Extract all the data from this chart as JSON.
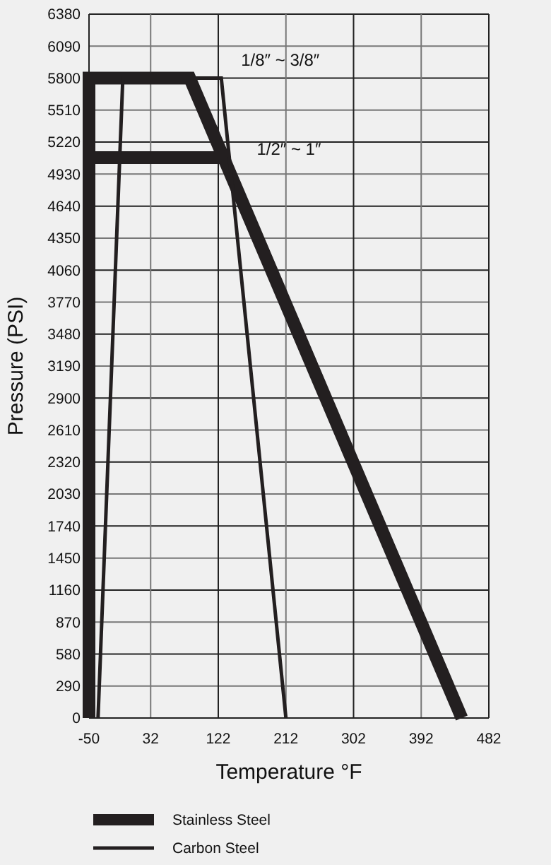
{
  "chart_data": {
    "type": "line",
    "xlabel": "Temperature °F",
    "ylabel": "Pressure (PSI)",
    "xlim": [
      -50,
      482
    ],
    "xticks": [
      -50,
      32,
      122,
      212,
      302,
      392,
      482
    ],
    "ylim": [
      0,
      6380
    ],
    "yticks": [
      0,
      290,
      580,
      870,
      1160,
      1450,
      1740,
      2030,
      2320,
      2610,
      2900,
      3190,
      3480,
      3770,
      4060,
      4350,
      4640,
      4930,
      5220,
      5510,
      5800,
      6090,
      6380
    ],
    "grid": true,
    "legend": "bottom",
    "marker": "none",
    "line_style": "solid",
    "series": [
      {
        "name": "Stainless Steel",
        "color": "#231f20",
        "x": [
          -50,
          -50,
          84,
          446
        ],
        "values": [
          0,
          5800,
          5800,
          0
        ]
      },
      {
        "name": "Carbon Steel",
        "color": "#231f20",
        "x": [
          -38,
          -5,
          126,
          212
        ],
        "values": [
          0,
          5800,
          5800,
          0
        ]
      },
      {
        "color": "#231f20",
        "x": [
          -50,
          128
        ],
        "values": [
          5080,
          5080
        ]
      }
    ],
    "annotations": [
      {
        "text": "1/8″ ~ 3/8″",
        "x": 126,
        "y": 5800
      },
      {
        "text": "1/2″ ~ 1″",
        "x": 128,
        "y": 5080
      }
    ]
  }
}
